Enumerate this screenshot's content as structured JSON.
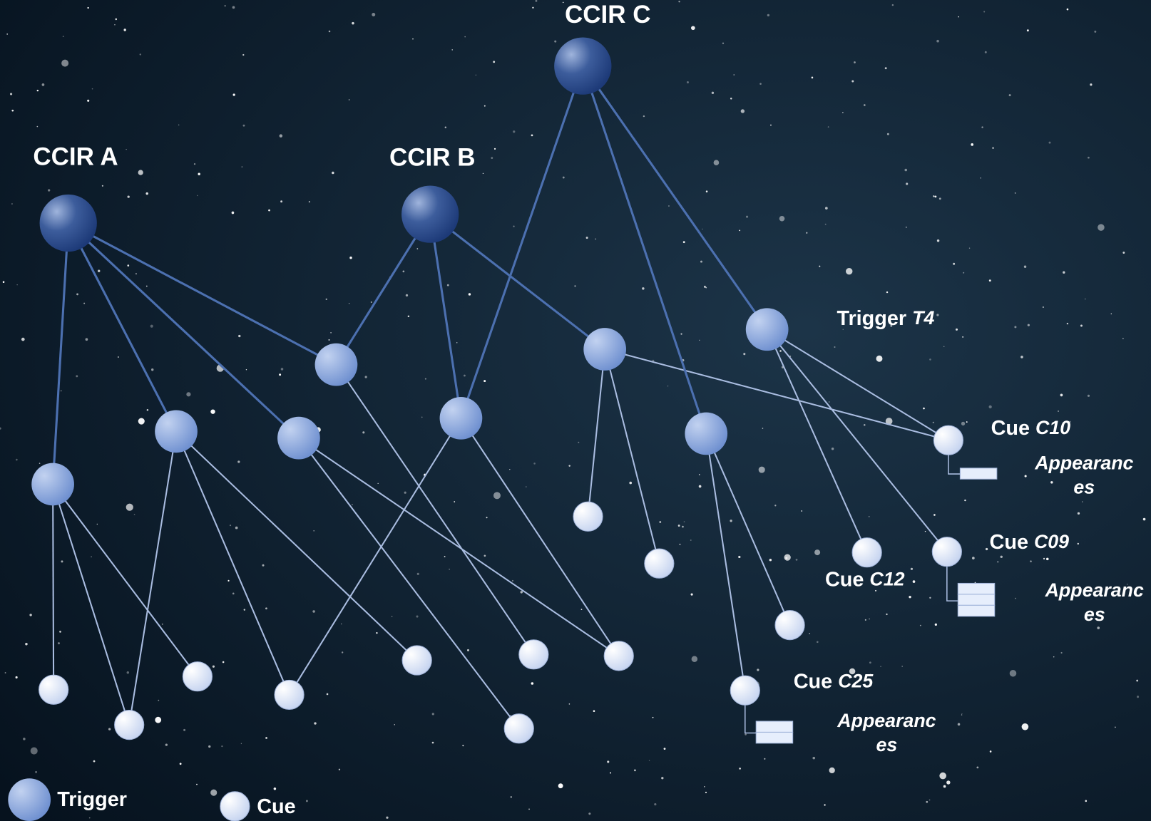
{
  "ccirs": [
    {
      "label": "CCIR A"
    },
    {
      "label": "CCIR B"
    },
    {
      "label": "CCIR C"
    }
  ],
  "annotations": [
    {
      "kind": "Trigger",
      "id": "T4"
    },
    {
      "kind": "Cue",
      "id": "C10"
    },
    {
      "kind": "Cue",
      "id": "C09"
    },
    {
      "kind": "Cue",
      "id": "C12"
    },
    {
      "kind": "Cue",
      "id": "C25"
    }
  ],
  "appearances": [
    [
      "Appearanc",
      "es"
    ],
    [
      "Appearanc",
      "es"
    ],
    [
      "Appearanc",
      "es"
    ]
  ],
  "legend": [
    "Trigger",
    "Cue"
  ]
}
